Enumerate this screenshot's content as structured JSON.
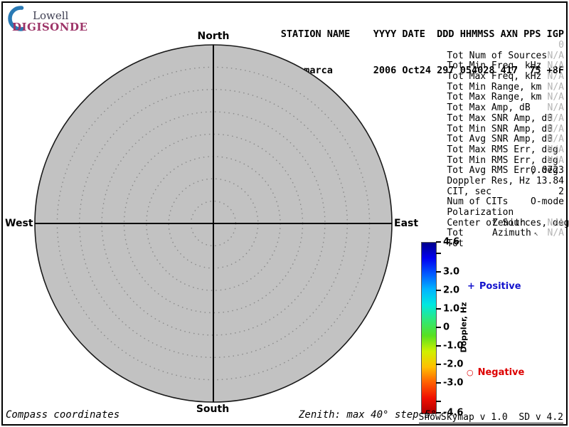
{
  "logo": {
    "line1": "Lowell",
    "line2": "DIGISONDE",
    "crescent_color": "#2a7ab5",
    "wordmark_color": "#9d3468"
  },
  "header": {
    "line1": "STATION NAME    YYYY DATE  DDD HHMMSS AXN PPS IGP",
    "line2": "Jicamarca       2006 Oct24 297 054028 417  75 +8F"
  },
  "compass": {
    "north": "North",
    "south": "South",
    "west": "West",
    "east": "East"
  },
  "stats": {
    "rows": [
      {
        "label": "Tot Num of Sources",
        "value": "0",
        "dim": true
      },
      {
        "label": "Tot Min Freq, kHz",
        "value": "N/A",
        "dim": true
      },
      {
        "label": "Tot Max Freq, kHz",
        "value": "N/A",
        "dim": true
      },
      {
        "label": "Tot Min Range, km",
        "value": "N/A",
        "dim": true
      },
      {
        "label": "Tot Max Range, km",
        "value": "N/A",
        "dim": true
      },
      {
        "label": "Tot Max Amp, dB",
        "value": "N/A",
        "dim": true
      },
      {
        "label": "Tot Max SNR Amp, dB",
        "value": "N/A",
        "dim": true
      },
      {
        "label": "Tot Min SNR Amp, dB",
        "value": "N/A",
        "dim": true
      },
      {
        "label": "Tot Avg SNR Amp, dB",
        "value": "N/A",
        "dim": true
      },
      {
        "label": "Tot Max RMS Err, deg",
        "value": "N/A",
        "dim": true
      },
      {
        "label": "Tot Min RMS Err, deg",
        "value": "N/A",
        "dim": true
      },
      {
        "label": "Tot Avg RMS Err, deg",
        "value": "N/A",
        "dim": true
      },
      {
        "label": "Doppler Res, Hz",
        "value": "0.0723",
        "dim": false
      },
      {
        "label": "CIT, sec",
        "value": "13.84",
        "dim": false
      },
      {
        "label": "Num of CITs",
        "value": "2",
        "dim": false
      },
      {
        "label": "Polarization",
        "value": "O-mode",
        "dim": false
      },
      {
        "label": "Center of Sources, deg:",
        "value": "",
        "dim": false
      },
      {
        "label": "Tot",
        "mid": "Zenith",
        "value": "N/A",
        "dim": true
      },
      {
        "label": "Tot",
        "mid": "Azimuth",
        "value": "N/A",
        "dim": true,
        "cursor": true
      }
    ]
  },
  "icons": {
    "cursor": "↖"
  },
  "colorbar": {
    "title": "Doppler, Hz",
    "max": 4.6,
    "min": -4.6,
    "ticks": [
      {
        "value": 4.6,
        "label": "4.6"
      },
      {
        "value": 4.0,
        "label": ""
      },
      {
        "value": 3.0,
        "label": "3.0"
      },
      {
        "value": 2.0,
        "label": "2.0"
      },
      {
        "value": 1.0,
        "label": "1.0"
      },
      {
        "value": 0.0,
        "label": "0"
      },
      {
        "value": -1.0,
        "label": "-1.0"
      },
      {
        "value": -2.0,
        "label": "-2.0"
      },
      {
        "value": -3.0,
        "label": "-3.0"
      },
      {
        "value": -4.0,
        "label": ""
      },
      {
        "value": -4.6,
        "label": "-4.6"
      }
    ],
    "gradient_top_to_bottom": [
      "#00008b",
      "#0000f0",
      "#0058ff",
      "#00b4ff",
      "#00e8e0",
      "#30e878",
      "#58e020",
      "#d0f000",
      "#ffc000",
      "#ff6000",
      "#f01000",
      "#b00000"
    ]
  },
  "legend": {
    "positive_marker": "+",
    "positive_label": "Positive",
    "positive_color": "#1414cd",
    "negative_marker": "○",
    "negative_label": "Negative",
    "negative_color": "#dd0000"
  },
  "footer": {
    "left": "Compass coordinates",
    "center": "Zenith: max 40°  step 5°",
    "right": "ShowSkymap v 1.0  SD v 4.2"
  },
  "chart_data": {
    "type": "scatter",
    "subtype": "polar-skymap",
    "station": "Jicamarca",
    "date": "2006 Oct24 297 054028",
    "coordinate_system": "Compass coordinates",
    "zenith_max_deg": 40,
    "zenith_step_deg": 5,
    "rings_deg": [
      5,
      10,
      15,
      20,
      25,
      30,
      35,
      40
    ],
    "directions": [
      "North",
      "East",
      "South",
      "West"
    ],
    "num_sources": 0,
    "points": [],
    "colorbar": {
      "label": "Doppler, Hz",
      "min": -4.6,
      "max": 4.6,
      "labeled_ticks": [
        4.6,
        3.0,
        2.0,
        1.0,
        0,
        -1.0,
        -2.0,
        -3.0,
        -4.6
      ]
    },
    "legend": [
      "+ Positive",
      "○ Negative"
    ]
  }
}
